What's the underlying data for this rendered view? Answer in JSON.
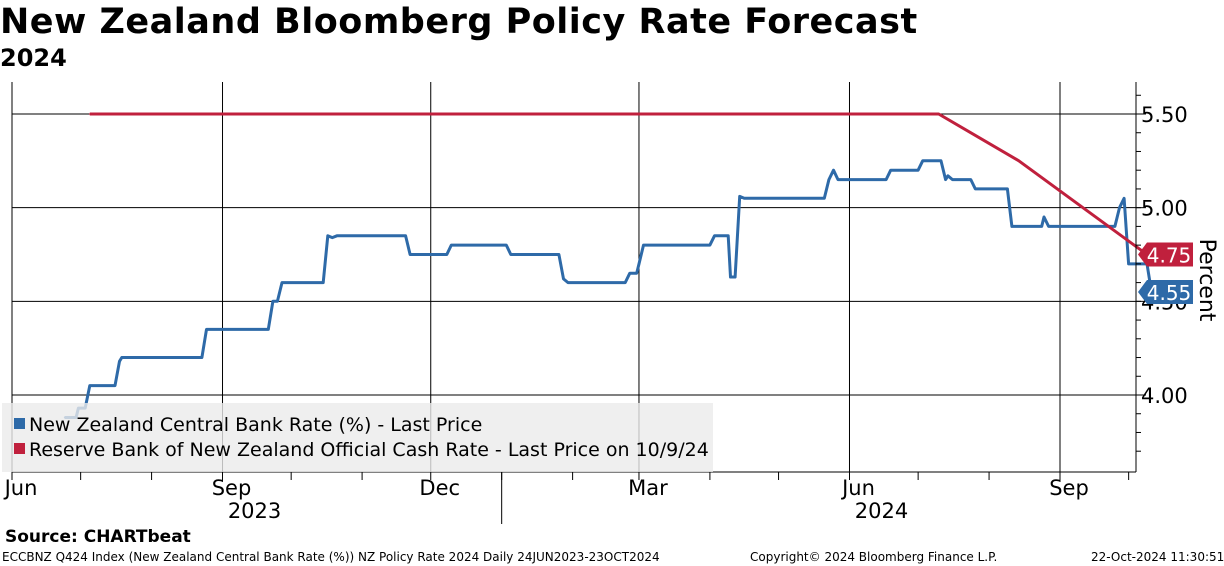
{
  "title": "New Zealand Bloomberg Policy Rate Forecast",
  "subtitle": "2024",
  "source": "Source: CHARTbeat",
  "footer": {
    "ticker": "ECCBNZ Q424 Index (New Zealand Central Bank Rate (%)) NZ Policy Rate 2024  Daily 24JUN2023-23OCT2024",
    "copyright": "Copyright© 2024 Bloomberg Finance L.P.",
    "timestamp": "22-Oct-2024 11:30:51"
  },
  "chart_data": {
    "type": "line",
    "title": "New Zealand Bloomberg Policy Rate Forecast",
    "subtitle": "2024",
    "ylabel": "Percent",
    "ylim": [
      3.6,
      5.7
    ],
    "x_range": [
      "2023-06-24",
      "2024-10-23"
    ],
    "y_ticks": [
      {
        "value": 5.5,
        "label": "5.50"
      },
      {
        "value": 5.0,
        "label": "5.00"
      },
      {
        "value": 4.5,
        "label": "4.50"
      },
      {
        "value": 4.0,
        "label": "4.00"
      }
    ],
    "month_ticks": [
      {
        "date": "2023-06-01",
        "label": "Jun"
      },
      {
        "date": "2023-09-01",
        "label": "Sep"
      },
      {
        "date": "2023-12-01",
        "label": "Dec"
      },
      {
        "date": "2024-03-01",
        "label": "Mar"
      },
      {
        "date": "2024-06-01",
        "label": "Jun"
      },
      {
        "date": "2024-09-01",
        "label": "Sep"
      }
    ],
    "year_labels": [
      {
        "center": "2023-09-15",
        "label": "2023"
      },
      {
        "center": "2024-06-15",
        "label": "2024"
      }
    ],
    "year_divider": "2024-01-01",
    "legend": {
      "position": "bottom-left",
      "entries": [
        {
          "label": "New Zealand Central Bank Rate (%) - Last Price",
          "color": "#2e6aa8"
        },
        {
          "label": "Reserve Bank of New Zealand Official Cash Rate - Last Price on 10/9/24",
          "color": "#c0203d"
        }
      ]
    },
    "series": [
      {
        "name": "New Zealand Central Bank Rate (%) - Last Price",
        "color": "#2e6aa8",
        "last_label": "4.55",
        "step": true,
        "points": [
          [
            "2023-06-24",
            3.88
          ],
          [
            "2023-06-29",
            3.88
          ],
          [
            "2023-06-30",
            3.93
          ],
          [
            "2023-07-03",
            3.93
          ],
          [
            "2023-07-05",
            4.05
          ],
          [
            "2023-07-16",
            4.05
          ],
          [
            "2023-07-18",
            4.18
          ],
          [
            "2023-07-19",
            4.2
          ],
          [
            "2023-08-23",
            4.2
          ],
          [
            "2023-08-25",
            4.35
          ],
          [
            "2023-09-21",
            4.35
          ],
          [
            "2023-09-23",
            4.5
          ],
          [
            "2023-09-25",
            4.5
          ],
          [
            "2023-09-27",
            4.6
          ],
          [
            "2023-10-15",
            4.6
          ],
          [
            "2023-10-17",
            4.85
          ],
          [
            "2023-10-19",
            4.84
          ],
          [
            "2023-10-21",
            4.85
          ],
          [
            "2023-11-20",
            4.85
          ],
          [
            "2023-11-22",
            4.75
          ],
          [
            "2023-12-08",
            4.75
          ],
          [
            "2023-12-10",
            4.8
          ],
          [
            "2024-01-03",
            4.8
          ],
          [
            "2024-01-05",
            4.75
          ],
          [
            "2024-01-26",
            4.75
          ],
          [
            "2024-01-28",
            4.62
          ],
          [
            "2024-01-30",
            4.6
          ],
          [
            "2024-02-24",
            4.6
          ],
          [
            "2024-02-26",
            4.65
          ],
          [
            "2024-02-29",
            4.65
          ],
          [
            "2024-03-01",
            4.7
          ],
          [
            "2024-03-03",
            4.8
          ],
          [
            "2024-04-01",
            4.8
          ],
          [
            "2024-04-03",
            4.85
          ],
          [
            "2024-04-09",
            4.85
          ],
          [
            "2024-04-10",
            4.63
          ],
          [
            "2024-04-12",
            4.63
          ],
          [
            "2024-04-14",
            5.06
          ],
          [
            "2024-04-16",
            5.05
          ],
          [
            "2024-05-21",
            5.05
          ],
          [
            "2024-05-23",
            5.15
          ],
          [
            "2024-05-25",
            5.2
          ],
          [
            "2024-05-27",
            5.15
          ],
          [
            "2024-06-17",
            5.15
          ],
          [
            "2024-06-19",
            5.2
          ],
          [
            "2024-07-01",
            5.2
          ],
          [
            "2024-07-03",
            5.25
          ],
          [
            "2024-07-11",
            5.25
          ],
          [
            "2024-07-13",
            5.15
          ],
          [
            "2024-07-14",
            5.17
          ],
          [
            "2024-07-16",
            5.15
          ],
          [
            "2024-07-24",
            5.15
          ],
          [
            "2024-07-26",
            5.1
          ],
          [
            "2024-08-09",
            5.1
          ],
          [
            "2024-08-11",
            4.9
          ],
          [
            "2024-08-24",
            4.9
          ],
          [
            "2024-08-25",
            4.95
          ],
          [
            "2024-08-27",
            4.9
          ],
          [
            "2024-09-25",
            4.9
          ],
          [
            "2024-09-27",
            5.0
          ],
          [
            "2024-09-29",
            5.05
          ],
          [
            "2024-10-01",
            4.7
          ],
          [
            "2024-10-09",
            4.7
          ],
          [
            "2024-10-11",
            4.55
          ],
          [
            "2024-10-19",
            4.55
          ]
        ]
      },
      {
        "name": "Reserve Bank of New Zealand Official Cash Rate - Last Price on 10/9/24",
        "color": "#c0203d",
        "last_label": "4.75",
        "step": false,
        "points": [
          [
            "2023-07-05",
            5.5
          ],
          [
            "2024-07-10",
            5.5
          ],
          [
            "2024-08-14",
            5.25
          ],
          [
            "2024-10-09",
            4.75
          ]
        ]
      }
    ]
  }
}
